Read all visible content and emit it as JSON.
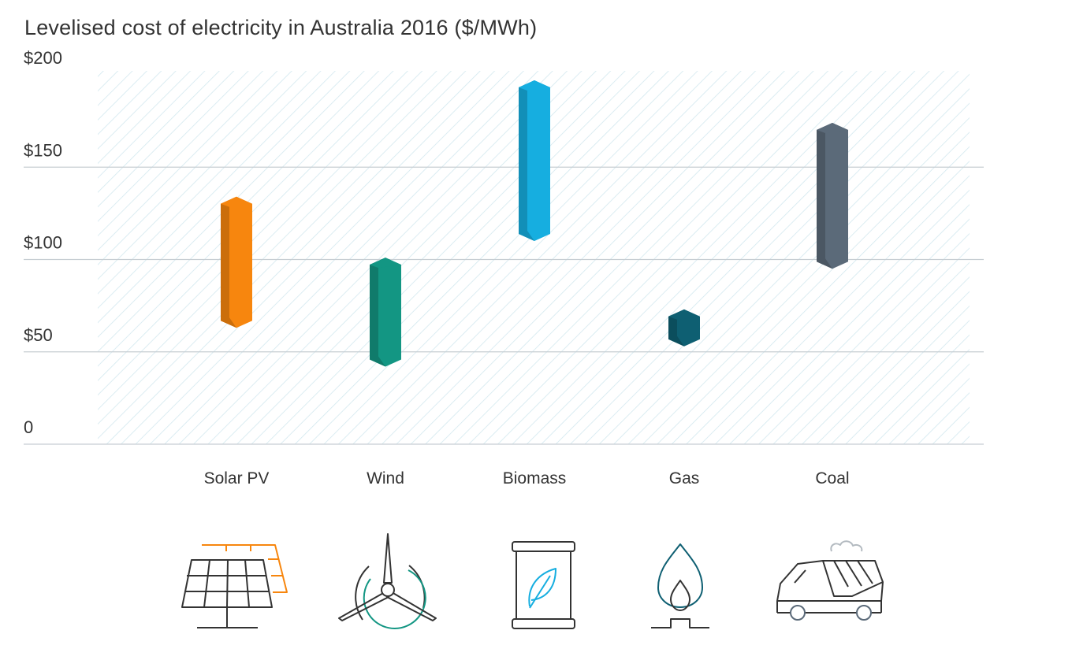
{
  "title": "Levelised cost of electricity in Australia 2016 ($/MWh)",
  "chart_data": {
    "type": "range-bar",
    "title": "Levelised cost of electricity in Australia 2016 ($/MWh)",
    "xlabel": "",
    "ylabel": "",
    "ylim": [
      0,
      200
    ],
    "yticks": [
      0,
      50,
      100,
      150,
      200
    ],
    "ytick_labels": [
      "0",
      "$50",
      "$100",
      "$150",
      "$200"
    ],
    "grid": true,
    "categories": [
      "Solar PV",
      "Wind",
      "Biomass",
      "Gas",
      "Coal"
    ],
    "series": [
      {
        "category": "Solar PV",
        "low": 63,
        "high": 134,
        "color": "#f7860e",
        "icon": "solar-panel-icon"
      },
      {
        "category": "Wind",
        "low": 42,
        "high": 101,
        "color": "#139683",
        "icon": "wind-turbine-icon"
      },
      {
        "category": "Biomass",
        "low": 110,
        "high": 197,
        "color": "#16aee0",
        "icon": "biomass-barrel-leaf-icon"
      },
      {
        "category": "Gas",
        "low": 53,
        "high": 73,
        "color": "#0e5f72",
        "icon": "gas-flame-icon"
      },
      {
        "category": "Coal",
        "low": 95,
        "high": 174,
        "color": "#5b6a79",
        "icon": "coal-truck-icon"
      }
    ]
  },
  "colors": {
    "text": "#333333",
    "gridline": "#c7ced3",
    "hatch": "#d2e8ef",
    "icon_dark": "#333333"
  }
}
